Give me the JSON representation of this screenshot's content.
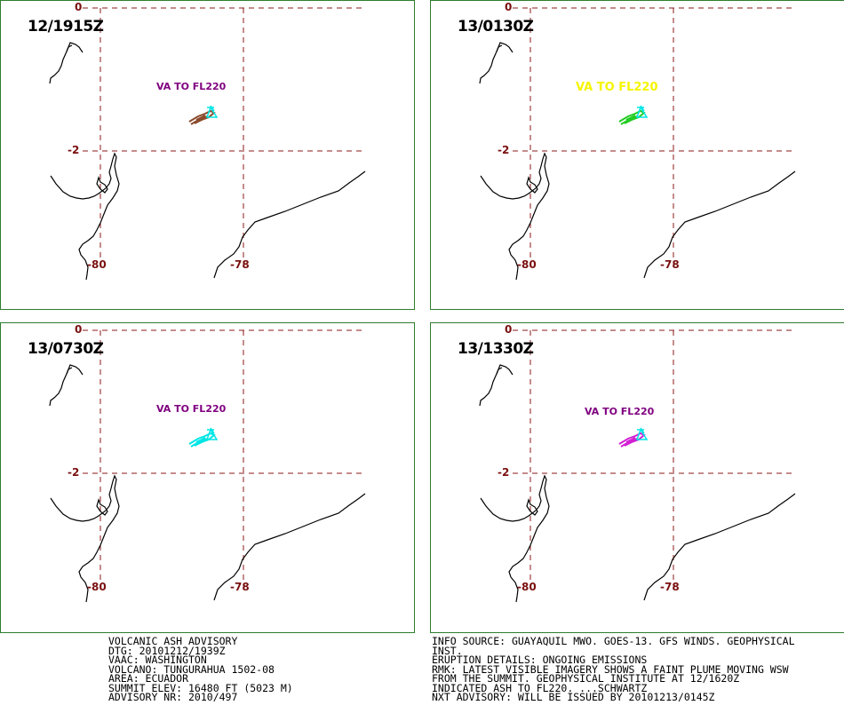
{
  "panels": [
    {
      "time": "12/1915Z",
      "va_label": "VA TO FL220",
      "label_color": "#800080",
      "plume_color": "#8b4a2b",
      "marker_color": "#00e5e5"
    },
    {
      "time": "13/0130Z",
      "va_label": "VA  TO  FL220",
      "label_color": "#f5f500",
      "plume_color": "#22cc22",
      "marker_color": "#00e5e5"
    },
    {
      "time": "13/0730Z",
      "va_label": "VA TO FL220",
      "label_color": "#800080",
      "plume_color": "#00e5e5",
      "marker_color": "#00e5e5"
    },
    {
      "time": "13/1330Z",
      "va_label": "VA TO FL220",
      "label_color": "#800080",
      "plume_color": "#d21fd2",
      "marker_color": "#00e5e5"
    }
  ],
  "grid": {
    "lat_labels": [
      "0",
      "-2"
    ],
    "lon_labels": [
      "-80",
      "-78"
    ],
    "grid_color": "#8b1a1a"
  },
  "advisory_left": [
    "VOLCANIC ASH ADVISORY",
    "DTG: 20101212/1939Z",
    "VAAC: WASHINGTON",
    "VOLCANO: TUNGURAHUA 1502-08",
    "AREA: ECUADOR",
    "SUMMIT ELEV: 16480 FT (5023 M)",
    "ADVISORY NR: 2010/497"
  ],
  "advisory_right": [
    "INFO SOURCE: GUAYAQUIL MWO. GOES-13. GFS WINDS. GEOPHYSICAL",
    "INST.",
    "ERUPTION DETAILS: ONGOING EMISSIONS",
    "RMK: LATEST VISIBLE IMAGERY SHOWS A FAINT PLUME MOVING WSW",
    "FROM THE SUMMIT. GEOPHYSICAL INSTITUTE AT 12/1620Z",
    "INDICATED ASH TO FL220. ...SCHWARTZ",
    "NXT ADVISORY: WILL BE ISSUED BY 20101213/0145Z"
  ]
}
